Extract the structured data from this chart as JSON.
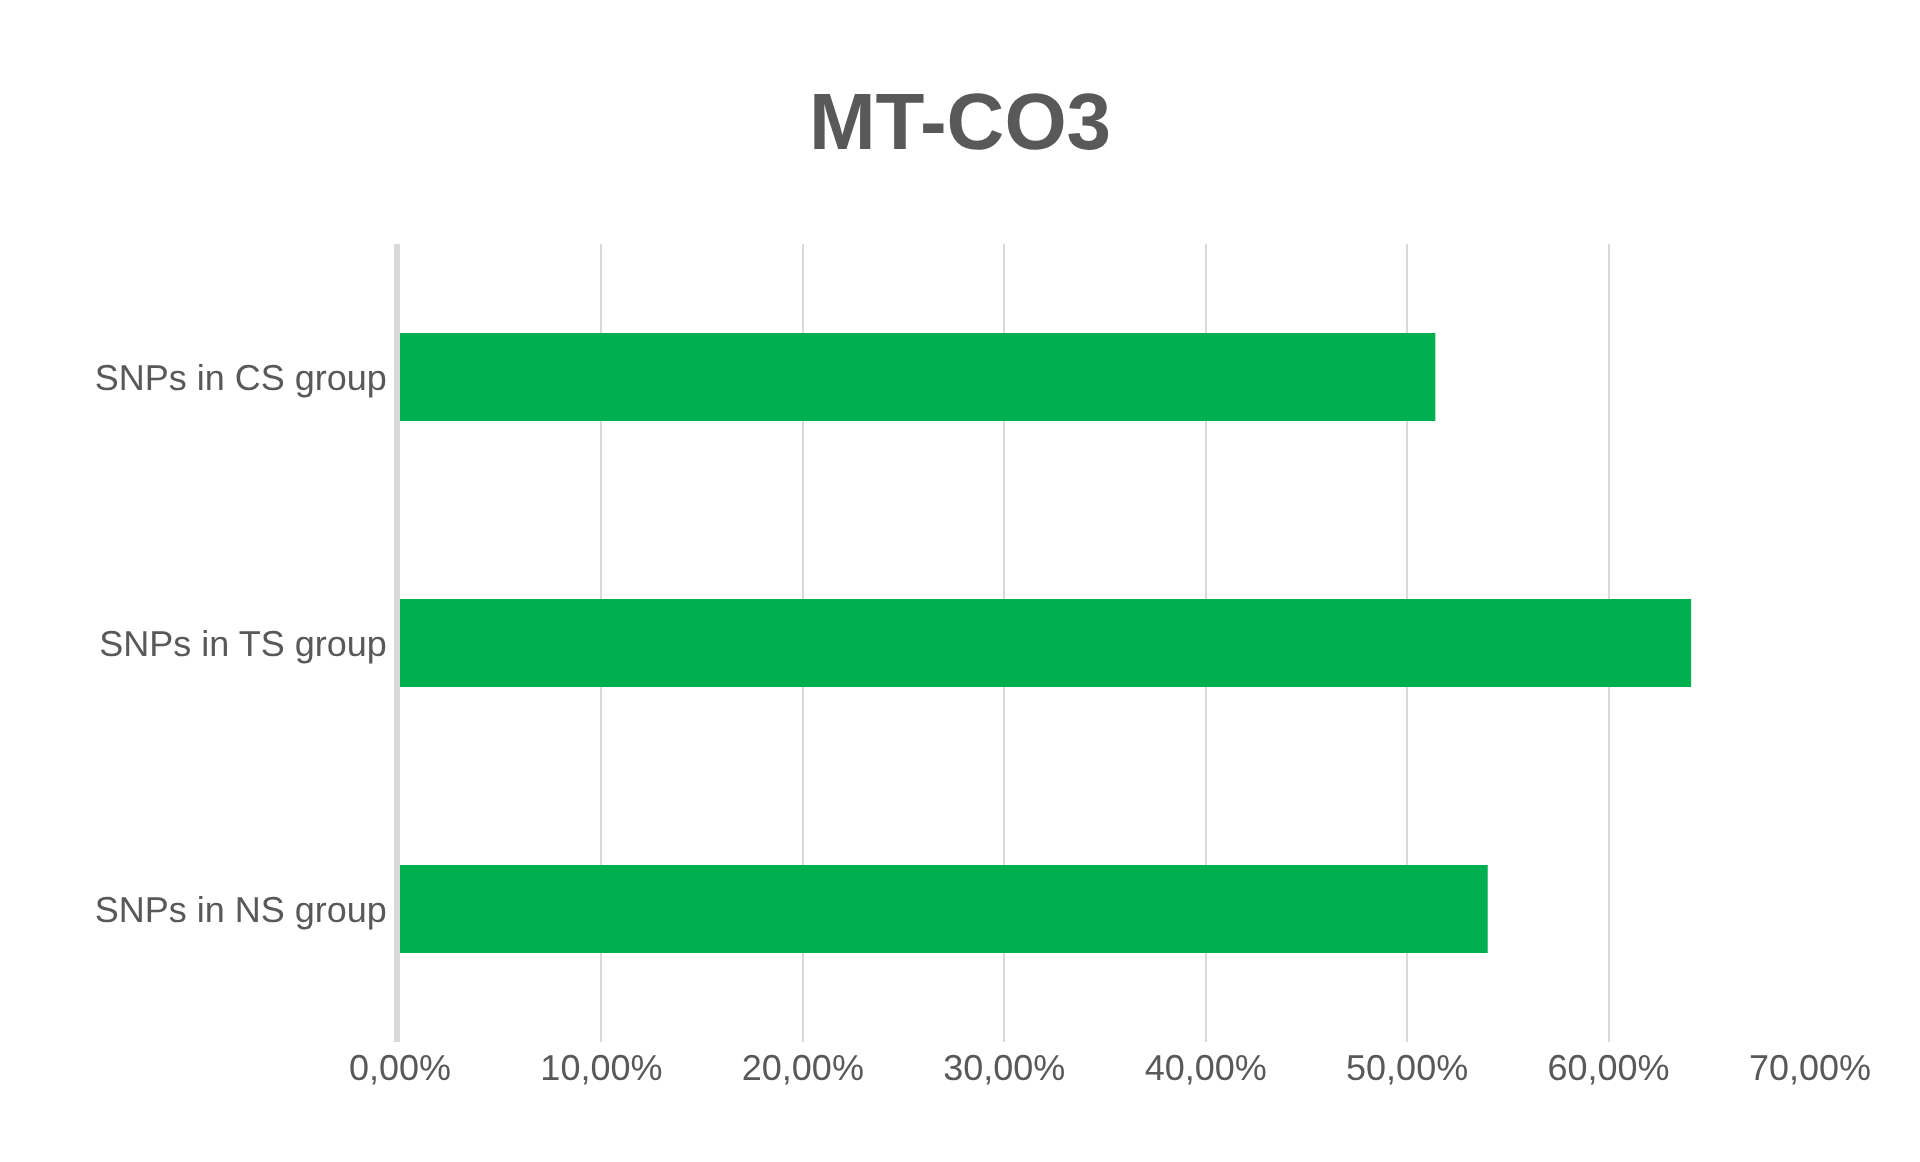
{
  "chart_data": {
    "type": "bar",
    "title": "MT-CO3",
    "orientation": "horizontal",
    "categories": [
      "SNPs in CS group",
      "SNPs in TS group",
      "SNPs in NS group"
    ],
    "values": [
      51.4,
      64.1,
      54.0
    ],
    "color": "#00b050",
    "xlim": [
      0,
      70
    ],
    "xticks": [
      {
        "value": 0,
        "label": "0,00%"
      },
      {
        "value": 10,
        "label": "10,00%"
      },
      {
        "value": 20,
        "label": "20,00%"
      },
      {
        "value": 30,
        "label": "30,00%"
      },
      {
        "value": 40,
        "label": "40,00%"
      },
      {
        "value": 50,
        "label": "50,00%"
      },
      {
        "value": 60,
        "label": "60,00%"
      },
      {
        "value": 70,
        "label": "70,00%"
      }
    ],
    "grid": "x"
  }
}
